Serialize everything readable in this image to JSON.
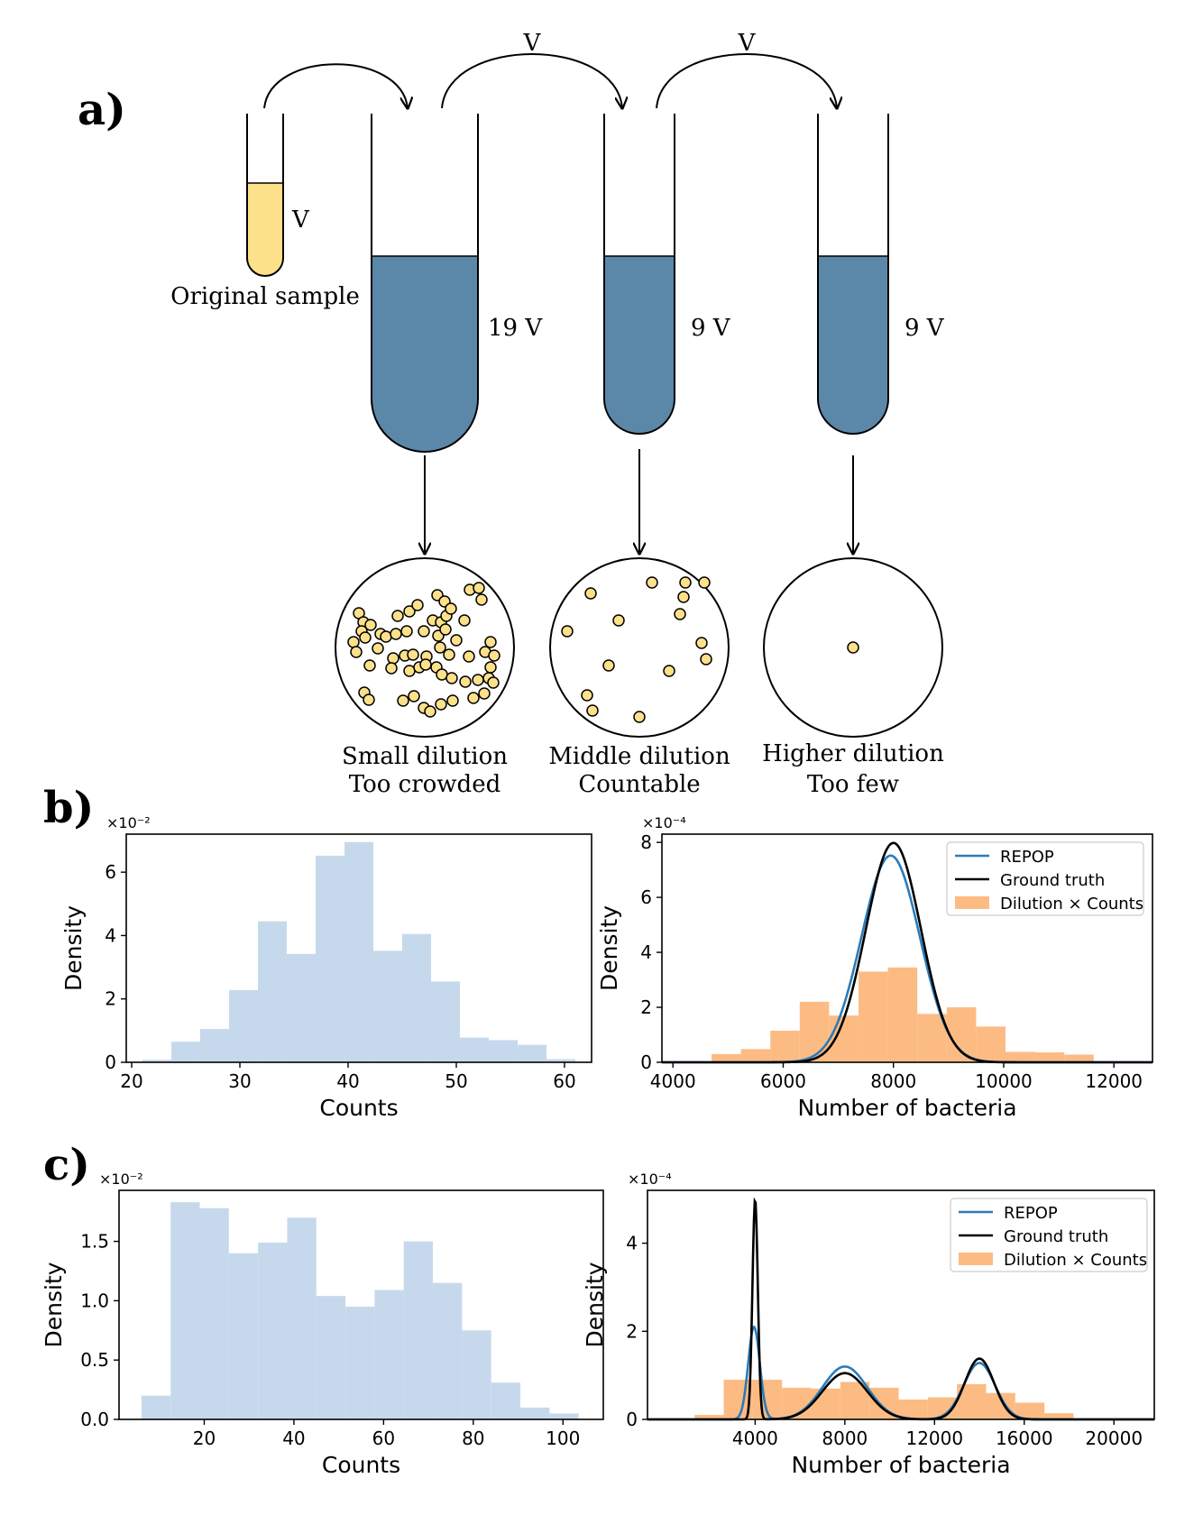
{
  "panel_a": {
    "label": "a)",
    "transfer_labels": [
      "V",
      "V"
    ],
    "original_volume": "V",
    "original_caption": "Original sample",
    "tube_volumes": [
      "19 V",
      "9 V",
      "9 V"
    ],
    "plate_captions": [
      [
        "Small dilution",
        "Too crowded"
      ],
      [
        "Middle dilution",
        "Countable"
      ],
      [
        "Higher dilution",
        "Too few"
      ]
    ],
    "colors": {
      "sample": "#fde08a",
      "diluent": "#5b87a8",
      "colony": "#fde08a"
    }
  },
  "panel_b_label": "b)",
  "panel_c_label": "c)",
  "chart_data": [
    {
      "type": "bar",
      "panel": "b-left",
      "xlabel": "Counts",
      "ylabel": "Density",
      "multiplier": "×10⁻²",
      "xlim": [
        19.5,
        62.5
      ],
      "ylim": [
        0,
        7.2
      ],
      "xticks": [
        20,
        30,
        40,
        50,
        60
      ],
      "xtick_labels": [
        "20",
        "30",
        "40",
        "50",
        "60"
      ],
      "yticks": [
        0,
        2,
        4,
        6
      ],
      "ytick_labels": [
        "0",
        "2",
        "4",
        "6"
      ],
      "bin_edges": [
        21,
        23.67,
        26.33,
        29,
        31.67,
        34.33,
        37,
        39.67,
        42.33,
        45,
        47.67,
        50.33,
        53,
        55.67,
        58.33,
        61
      ],
      "values": [
        0.08,
        0.65,
        1.05,
        2.28,
        4.45,
        3.42,
        6.52,
        6.95,
        3.52,
        4.05,
        2.55,
        0.78,
        0.7,
        0.55,
        0.1
      ],
      "color": "#c6d9ec"
    },
    {
      "type": "line",
      "panel": "b-right",
      "xlabel": "Number of bacteria",
      "ylabel": "Density",
      "multiplier": "×10⁻⁴",
      "xlim": [
        3800,
        12700
      ],
      "ylim": [
        0,
        8.3
      ],
      "xticks": [
        4000,
        6000,
        8000,
        10000,
        12000
      ],
      "xtick_labels": [
        "4000",
        "6000",
        "8000",
        "10000",
        "12000"
      ],
      "yticks": [
        0,
        2,
        4,
        6,
        8
      ],
      "ytick_labels": [
        "0",
        "2",
        "4",
        "6",
        "8"
      ],
      "legend_position": "top-right",
      "series": [
        {
          "name": "REPOP",
          "kind": "line",
          "color": "#2b7bba",
          "components": [
            {
              "mu": 7950,
              "sigma": 530,
              "amp": 7.52
            }
          ]
        },
        {
          "name": "Ground truth",
          "kind": "line",
          "color": "#000000",
          "components": [
            {
              "mu": 8000,
              "sigma": 500,
              "amp": 7.98
            }
          ]
        },
        {
          "name": "Dilution × Counts",
          "kind": "hist",
          "color": "#fdbb84",
          "bin_edges": [
            4700,
            5233,
            5767,
            6300,
            6833,
            7367,
            7900,
            8433,
            8967,
            9500,
            10033,
            10567,
            11100,
            11633
          ],
          "values": [
            0.3,
            0.48,
            1.15,
            2.2,
            1.7,
            3.3,
            3.45,
            1.76,
            2.0,
            1.3,
            0.38,
            0.36,
            0.28
          ]
        }
      ]
    },
    {
      "type": "bar",
      "panel": "c-left",
      "xlabel": "Counts",
      "ylabel": "Density",
      "multiplier": "×10⁻²",
      "xlim": [
        1,
        109
      ],
      "ylim": [
        0,
        1.93
      ],
      "xticks": [
        20,
        40,
        60,
        80,
        100
      ],
      "xtick_labels": [
        "20",
        "40",
        "60",
        "80",
        "100"
      ],
      "yticks": [
        0,
        0.5,
        1.0,
        1.5
      ],
      "ytick_labels": [
        "0.0",
        "0.5",
        "1.0",
        "1.5"
      ],
      "bin_edges": [
        6,
        12.5,
        19,
        25.5,
        32,
        38.5,
        45,
        51.5,
        58,
        64.5,
        71,
        77.5,
        84,
        90.5,
        97,
        103.5
      ],
      "values": [
        0.2,
        1.83,
        1.78,
        1.4,
        1.49,
        1.7,
        1.04,
        0.95,
        1.09,
        1.5,
        1.15,
        0.75,
        0.31,
        0.1,
        0.05
      ],
      "color": "#c6d9ec"
    },
    {
      "type": "line",
      "panel": "c-right",
      "xlabel": "Number of bacteria",
      "ylabel": "Density",
      "multiplier": "×10⁻⁴",
      "xlim": [
        -800,
        21800
      ],
      "ylim": [
        0,
        5.2
      ],
      "xticks": [
        4000,
        8000,
        12000,
        16000,
        20000
      ],
      "xtick_labels": [
        "4000",
        "8000",
        "12000",
        "16000",
        "20000"
      ],
      "yticks": [
        0,
        2,
        4
      ],
      "ytick_labels": [
        "0",
        "2",
        "4"
      ],
      "legend_position": "top-right",
      "series": [
        {
          "name": "REPOP",
          "kind": "line",
          "color": "#2b7bba",
          "components": [
            {
              "mu": 3950,
              "sigma": 260,
              "amp": 2.1
            },
            {
              "mu": 8000,
              "sigma": 1000,
              "amp": 1.2
            },
            {
              "mu": 14000,
              "sigma": 700,
              "amp": 1.28
            }
          ]
        },
        {
          "name": "Ground truth",
          "kind": "line",
          "color": "#000000",
          "components": [
            {
              "mu": 4000,
              "sigma": 120,
              "amp": 5.0
            },
            {
              "mu": 8000,
              "sigma": 1000,
              "amp": 1.05
            },
            {
              "mu": 14000,
              "sigma": 650,
              "amp": 1.38
            }
          ]
        },
        {
          "name": "Dilution × Counts",
          "kind": "hist",
          "color": "#fdbb84",
          "bin_edges": [
            1300,
            2600,
            3900,
            5200,
            6500,
            7800,
            9100,
            10400,
            11700,
            13000,
            14300,
            15600,
            16900,
            18200
          ],
          "values": [
            0.1,
            0.9,
            0.9,
            0.72,
            0.7,
            0.85,
            0.72,
            0.45,
            0.5,
            0.8,
            0.6,
            0.38,
            0.14
          ]
        }
      ]
    }
  ]
}
